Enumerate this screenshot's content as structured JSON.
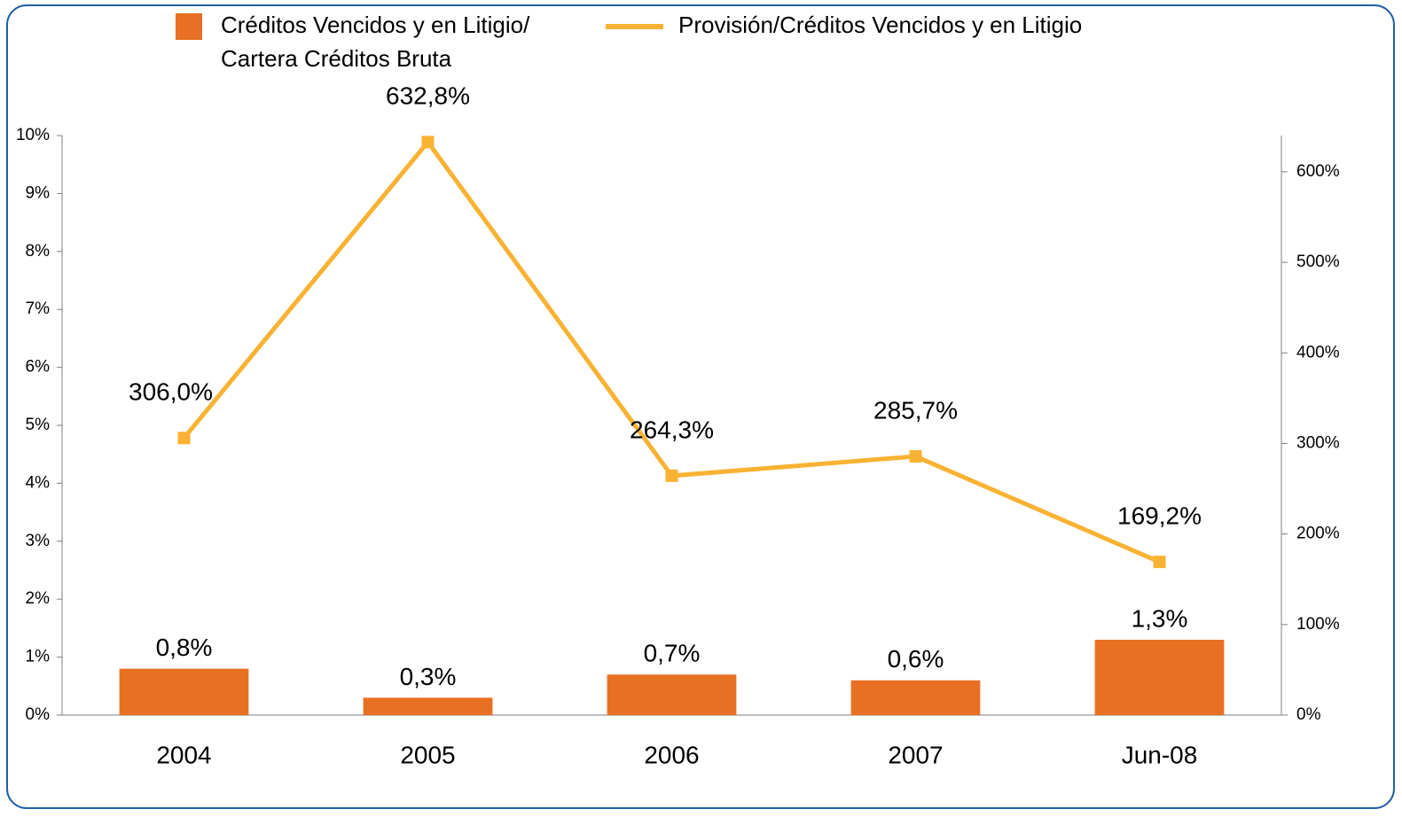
{
  "chart_data": {
    "type": "bar+line",
    "categories": [
      "2004",
      "2005",
      "2006",
      "2007",
      "Jun-08"
    ],
    "series": [
      {
        "name": "Créditos Vencidos y  en Litigio/\nCartera Créditos Bruta",
        "type": "bar",
        "color": "#e87022",
        "values": [
          0.8,
          0.3,
          0.7,
          0.6,
          1.3
        ],
        "value_labels": [
          "0,8%",
          "0,3%",
          "0,7%",
          "0,6%",
          "1,3%"
        ]
      },
      {
        "name": "Provisión/Créditos Vencidos y en Litigio",
        "type": "line",
        "axis": "y2",
        "color": "#f9b233",
        "values": [
          306.0,
          632.8,
          264.3,
          285.7,
          169.2
        ],
        "value_labels": [
          "306,0%",
          "632,8%",
          "264,3%",
          "285,7%",
          "169,2%"
        ]
      }
    ],
    "ylim": [
      0,
      10
    ],
    "yticks": [
      {
        "value": 0,
        "label": "0%"
      },
      {
        "value": 1,
        "label": "1%"
      },
      {
        "value": 2,
        "label": "2%"
      },
      {
        "value": 3,
        "label": "3%"
      },
      {
        "value": 4,
        "label": "4%"
      },
      {
        "value": 5,
        "label": "5%"
      },
      {
        "value": 6,
        "label": "6%"
      },
      {
        "value": 7,
        "label": "7%"
      },
      {
        "value": 8,
        "label": "8%"
      },
      {
        "value": 9,
        "label": "9%"
      },
      {
        "value": 10,
        "label": "10%"
      }
    ],
    "y2lim": [
      0,
      640
    ],
    "y2ticks": [
      {
        "value": 0,
        "label": "0%"
      },
      {
        "value": 100,
        "label": "100%"
      },
      {
        "value": 200,
        "label": "200%"
      },
      {
        "value": 300,
        "label": "300%"
      },
      {
        "value": 400,
        "label": "400%"
      },
      {
        "value": 500,
        "label": "500%"
      },
      {
        "value": 600,
        "label": "600%"
      }
    ],
    "legend": "top"
  }
}
